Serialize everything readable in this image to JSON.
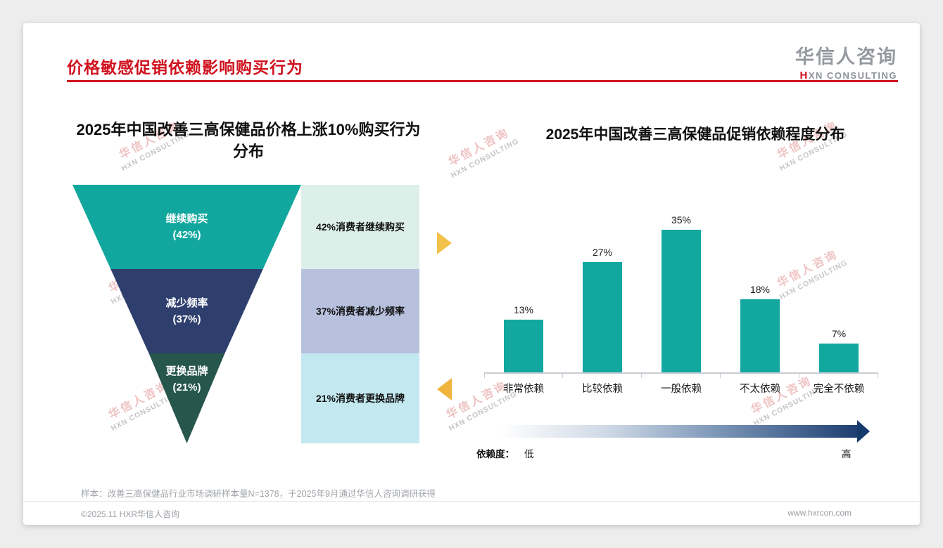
{
  "slide": {
    "title": "价格敏感促销依赖影响购买行为",
    "logo": {
      "cn": "华信人咨询",
      "en_accent": "H",
      "en_rest": "XN CONSULTING"
    },
    "watermark": {
      "cn": "华信人咨询",
      "en": "HXN CONSULTING"
    },
    "sample_note": "样本：改善三高保健品行业市场调研样本量N=1378，于2025年9月通过华信人咨询调研获得",
    "footer": {
      "copyright": "©2025.11 HXR华信人咨询",
      "website": "www.hxrcon.com"
    },
    "accent_color": "#d0121f"
  },
  "chart_data": [
    {
      "type": "funnel",
      "title": "2025年中国改善三高保健品价格上涨10%购买行为分布",
      "title_lines": [
        "2025年中国改善三高保健品价格上涨10%购买行为",
        "分布"
      ],
      "levels": [
        {
          "label": "继续购买",
          "value": 42,
          "value_label": "(42%)",
          "annotation": "42%消费者继续购买"
        },
        {
          "label": "减少频率",
          "value": 37,
          "value_label": "(37%)",
          "annotation": "37%消费者减少频率"
        },
        {
          "label": "更换品牌",
          "value": 21,
          "value_label": "(21%)",
          "annotation": "21%消费者更换品牌"
        }
      ],
      "colors": [
        "#12a79e",
        "#2e3f6e",
        "#26564c"
      ],
      "annotation_bg": [
        "#ddefe9",
        "#b7c1de",
        "#c3e8f0"
      ]
    },
    {
      "type": "bar",
      "title": "2025年中国改善三高保健品促销依赖程度分布",
      "categories": [
        "非常依赖",
        "比较依赖",
        "一般依赖",
        "不太依赖",
        "完全不依赖"
      ],
      "values": [
        13,
        27,
        35,
        18,
        7
      ],
      "value_labels": [
        "13%",
        "27%",
        "35%",
        "18%",
        "7%"
      ],
      "ylim": [
        0,
        40
      ],
      "bar_color": "#12a8a0",
      "grid": false,
      "dependency_axis": {
        "label": "依赖度：",
        "low": "低",
        "high": "高"
      }
    }
  ]
}
